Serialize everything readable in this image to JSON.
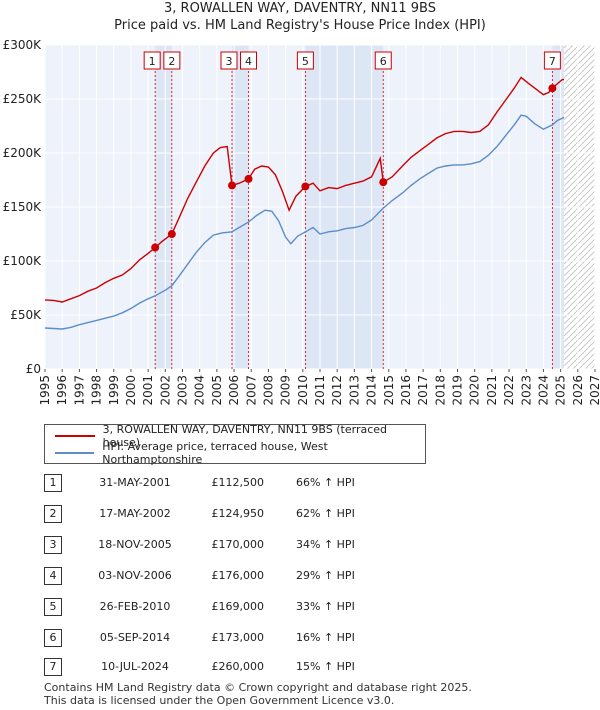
{
  "header": {
    "title": "3, ROWALLEN WAY, DAVENTRY, NN11 9BS",
    "subtitle": "Price paid vs. HM Land Registry's House Price Index (HPI)"
  },
  "colors": {
    "price_line": "#cc0000",
    "hpi_line": "#5b8dc9",
    "plot_bg": "#eef2fa",
    "shade": "#dde6f5",
    "future_hatch": "#c8c8c8",
    "marker": "#cc0000"
  },
  "legend": {
    "price_label": "3, ROWALLEN WAY, DAVENTRY, NN11 9BS (terraced house)",
    "hpi_label": "HPI: Average price, terraced house, West Northamptonshire"
  },
  "sales": [
    {
      "num": "1",
      "date": "31-MAY-2001",
      "price": "£112,500",
      "hpi": "66% ↑ HPI"
    },
    {
      "num": "2",
      "date": "17-MAY-2002",
      "price": "£124,950",
      "hpi": "62% ↑ HPI"
    },
    {
      "num": "3",
      "date": "18-NOV-2005",
      "price": "£170,000",
      "hpi": "34% ↑ HPI"
    },
    {
      "num": "4",
      "date": "03-NOV-2006",
      "price": "£176,000",
      "hpi": "29% ↑ HPI"
    },
    {
      "num": "5",
      "date": "26-FEB-2010",
      "price": "£169,000",
      "hpi": "33% ↑ HPI"
    },
    {
      "num": "6",
      "date": "05-SEP-2014",
      "price": "£173,000",
      "hpi": "16% ↑ HPI"
    },
    {
      "num": "7",
      "date": "10-JUL-2024",
      "price": "£260,000",
      "hpi": "15% ↑ HPI"
    }
  ],
  "footer": {
    "line1": "Contains HM Land Registry data © Crown copyright and database right 2025.",
    "line2": "This data is licensed under the Open Government Licence v3.0."
  },
  "chart_data": {
    "type": "line",
    "title": "3, ROWALLEN WAY, DAVENTRY, NN11 9BS",
    "subtitle": "Price paid vs. HM Land Registry's House Price Index (HPI)",
    "xlabel": "",
    "ylabel": "",
    "xlim": [
      1995,
      2027
    ],
    "ylim": [
      0,
      300000
    ],
    "x_ticks": [
      1995,
      1996,
      1997,
      1998,
      1999,
      2000,
      2001,
      2002,
      2003,
      2004,
      2005,
      2006,
      2007,
      2008,
      2009,
      2010,
      2011,
      2012,
      2013,
      2014,
      2015,
      2016,
      2017,
      2018,
      2019,
      2020,
      2021,
      2022,
      2023,
      2024,
      2025,
      2026,
      2027
    ],
    "y_ticks": [
      0,
      50000,
      100000,
      150000,
      200000,
      250000,
      300000
    ],
    "y_tick_labels": [
      "£0",
      "£50K",
      "£100K",
      "£150K",
      "£200K",
      "£250K",
      "£300K"
    ],
    "future_from": 2025.2,
    "shaded_periods": [
      [
        2001.41,
        2002.38
      ],
      [
        2005.88,
        2006.84
      ],
      [
        2010.15,
        2014.68
      ],
      [
        2024.52,
        2025.2
      ]
    ],
    "series": [
      {
        "name": "3, ROWALLEN WAY, DAVENTRY, NN11 9BS (terraced house)",
        "color": "#cc0000",
        "points": [
          [
            1995.0,
            64000
          ],
          [
            1995.5,
            63500
          ],
          [
            1996.0,
            62000
          ],
          [
            1996.5,
            65000
          ],
          [
            1997.0,
            68000
          ],
          [
            1997.5,
            72000
          ],
          [
            1998.0,
            75000
          ],
          [
            1998.5,
            80000
          ],
          [
            1999.0,
            84000
          ],
          [
            1999.5,
            87000
          ],
          [
            2000.0,
            93000
          ],
          [
            2000.5,
            101000
          ],
          [
            2001.0,
            107000
          ],
          [
            2001.41,
            112500
          ],
          [
            2001.8,
            118000
          ],
          [
            2002.38,
            124950
          ],
          [
            2002.8,
            140000
          ],
          [
            2003.3,
            158000
          ],
          [
            2003.8,
            173000
          ],
          [
            2004.3,
            188000
          ],
          [
            2004.8,
            200000
          ],
          [
            2005.2,
            205000
          ],
          [
            2005.6,
            206000
          ],
          [
            2005.88,
            170000
          ],
          [
            2006.3,
            172000
          ],
          [
            2006.84,
            176000
          ],
          [
            2007.2,
            185000
          ],
          [
            2007.6,
            188000
          ],
          [
            2008.0,
            187000
          ],
          [
            2008.4,
            180000
          ],
          [
            2008.8,
            165000
          ],
          [
            2009.2,
            147000
          ],
          [
            2009.6,
            160000
          ],
          [
            2010.15,
            169000
          ],
          [
            2010.6,
            172000
          ],
          [
            2011.0,
            165000
          ],
          [
            2011.5,
            168000
          ],
          [
            2012.0,
            167000
          ],
          [
            2012.5,
            170000
          ],
          [
            2013.0,
            172000
          ],
          [
            2013.5,
            174000
          ],
          [
            2014.0,
            178000
          ],
          [
            2014.5,
            195000
          ],
          [
            2014.68,
            173000
          ],
          [
            2015.2,
            178000
          ],
          [
            2015.8,
            188000
          ],
          [
            2016.3,
            196000
          ],
          [
            2016.8,
            202000
          ],
          [
            2017.3,
            208000
          ],
          [
            2017.8,
            214000
          ],
          [
            2018.3,
            218000
          ],
          [
            2018.8,
            220000
          ],
          [
            2019.3,
            220000
          ],
          [
            2019.8,
            219000
          ],
          [
            2020.3,
            220000
          ],
          [
            2020.8,
            226000
          ],
          [
            2021.3,
            238000
          ],
          [
            2021.8,
            249000
          ],
          [
            2022.3,
            260000
          ],
          [
            2022.7,
            270000
          ],
          [
            2023.0,
            266000
          ],
          [
            2023.5,
            260000
          ],
          [
            2024.0,
            254000
          ],
          [
            2024.3,
            256000
          ],
          [
            2024.52,
            260000
          ],
          [
            2024.8,
            264000
          ],
          [
            2025.1,
            268000
          ],
          [
            2025.2,
            268000
          ]
        ]
      },
      {
        "name": "HPI: Average price, terraced house, West Northamptonshire",
        "color": "#5b8dc9",
        "points": [
          [
            1995.0,
            38000
          ],
          [
            1995.5,
            37500
          ],
          [
            1996.0,
            37000
          ],
          [
            1996.5,
            38500
          ],
          [
            1997.0,
            41000
          ],
          [
            1997.5,
            43000
          ],
          [
            1998.0,
            45000
          ],
          [
            1998.5,
            47000
          ],
          [
            1999.0,
            49000
          ],
          [
            1999.5,
            52000
          ],
          [
            2000.0,
            56000
          ],
          [
            2000.5,
            61000
          ],
          [
            2001.0,
            65000
          ],
          [
            2001.41,
            67800
          ],
          [
            2002.0,
            73000
          ],
          [
            2002.38,
            77000
          ],
          [
            2002.8,
            86000
          ],
          [
            2003.3,
            97000
          ],
          [
            2003.8,
            108000
          ],
          [
            2004.3,
            117000
          ],
          [
            2004.8,
            124000
          ],
          [
            2005.3,
            126000
          ],
          [
            2005.88,
            127000
          ],
          [
            2006.3,
            131000
          ],
          [
            2006.84,
            136000
          ],
          [
            2007.3,
            142000
          ],
          [
            2007.8,
            147000
          ],
          [
            2008.2,
            146000
          ],
          [
            2008.6,
            137000
          ],
          [
            2009.0,
            122000
          ],
          [
            2009.3,
            116000
          ],
          [
            2009.7,
            123000
          ],
          [
            2010.15,
            127000
          ],
          [
            2010.6,
            131000
          ],
          [
            2011.0,
            125000
          ],
          [
            2011.5,
            127000
          ],
          [
            2012.0,
            128000
          ],
          [
            2012.5,
            130000
          ],
          [
            2013.0,
            131000
          ],
          [
            2013.5,
            133000
          ],
          [
            2014.0,
            138000
          ],
          [
            2014.68,
            149000
          ],
          [
            2015.2,
            156000
          ],
          [
            2015.8,
            163000
          ],
          [
            2016.3,
            170000
          ],
          [
            2016.8,
            176000
          ],
          [
            2017.3,
            181000
          ],
          [
            2017.8,
            186000
          ],
          [
            2018.3,
            188000
          ],
          [
            2018.8,
            189000
          ],
          [
            2019.3,
            189000
          ],
          [
            2019.8,
            190000
          ],
          [
            2020.3,
            192000
          ],
          [
            2020.8,
            198000
          ],
          [
            2021.3,
            206000
          ],
          [
            2021.8,
            216000
          ],
          [
            2022.3,
            226000
          ],
          [
            2022.7,
            235000
          ],
          [
            2023.0,
            234000
          ],
          [
            2023.5,
            227000
          ],
          [
            2024.0,
            222000
          ],
          [
            2024.52,
            226000
          ],
          [
            2024.8,
            230000
          ],
          [
            2025.2,
            233000
          ]
        ]
      }
    ],
    "sale_markers": [
      {
        "num": "1",
        "x": 2001.41,
        "y": 112500
      },
      {
        "num": "2",
        "x": 2002.38,
        "y": 124950
      },
      {
        "num": "3",
        "x": 2005.88,
        "y": 170000
      },
      {
        "num": "4",
        "x": 2006.84,
        "y": 176000
      },
      {
        "num": "5",
        "x": 2010.15,
        "y": 169000
      },
      {
        "num": "6",
        "x": 2014.68,
        "y": 173000
      },
      {
        "num": "7",
        "x": 2024.52,
        "y": 260000
      }
    ]
  }
}
